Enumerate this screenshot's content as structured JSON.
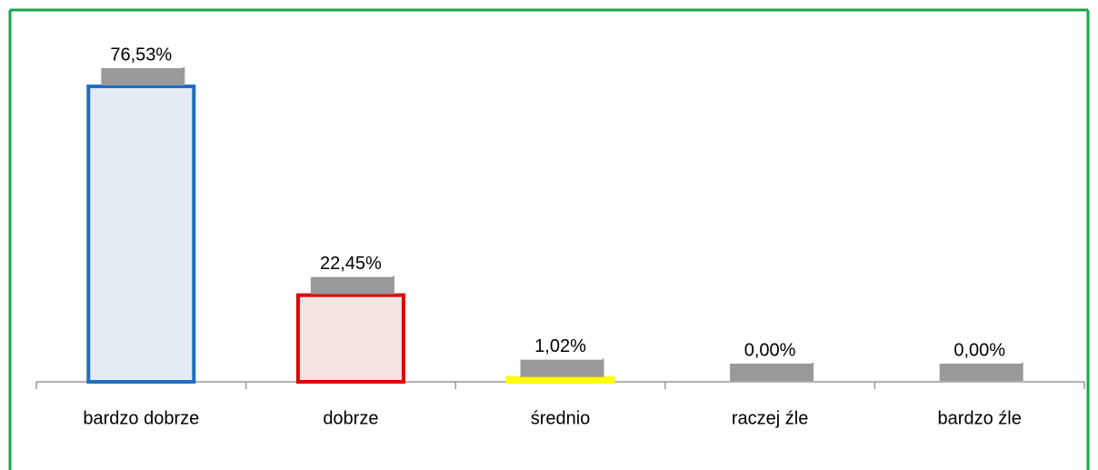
{
  "chart_data": {
    "type": "bar",
    "categories": [
      "bardzo dobrze",
      "dobrze",
      "średnio",
      "raczej źle",
      "bardzo źle"
    ],
    "values": [
      76.53,
      22.45,
      1.02,
      0,
      0
    ],
    "value_labels": [
      "76,53%",
      "22,45%",
      "1,02%",
      "0,00%",
      "0,00%"
    ],
    "colors": [
      "#1f6fbf",
      "#e00000",
      "#ffff00",
      "#a0a0a0",
      "#a0a0a0"
    ],
    "fills": [
      "#e4ebf3",
      "#f6e4e2",
      "#ffff66",
      "#ffffff",
      "#ffffff"
    ]
  }
}
